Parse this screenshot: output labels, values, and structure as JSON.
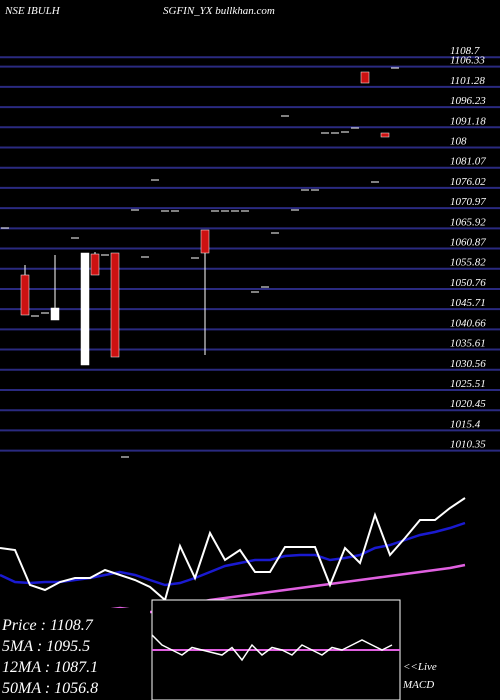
{
  "chart_data": {
    "type": "candlestick",
    "title_left": "NSE IBULH",
    "title_right": "SGFIN_YX bullkhan.com",
    "ylim": [
      1008.5,
      1113
    ],
    "yticks": [
      1108.7,
      1106.33,
      1101.28,
      1096.23,
      1091.18,
      {
        "value": 1086.12,
        "label": "108"
      },
      1081.07,
      1076.02,
      1070.97,
      1065.92,
      1060.87,
      1055.82,
      1050.76,
      1045.71,
      1040.66,
      1035.61,
      1030.56,
      1025.51,
      1020.45,
      1015.4,
      1010.35
    ],
    "grid": true,
    "grid_color": "#2a2a80",
    "up_color": "#ffffff",
    "down_color": "#cc1111",
    "candles": [
      {
        "o": 1066,
        "h": 1066,
        "l": 1066,
        "c": 1066
      },
      null,
      {
        "o": 1054.25,
        "h": 1056.75,
        "l": 1044.25,
        "c": 1044.25
      },
      {
        "o": 1044,
        "h": 1044,
        "l": 1044,
        "c": 1044
      },
      {
        "o": 1044.75,
        "h": 1044.75,
        "l": 1044.75,
        "c": 1044.75
      },
      {
        "o": 1043,
        "h": 1059.25,
        "l": 1043.5,
        "c": 1046
      },
      null,
      {
        "o": 1063.5,
        "h": 1063.5,
        "l": 1063.5,
        "c": 1063.5
      },
      {
        "o": 1031.75,
        "h": 1059.75,
        "l": 1031.75,
        "c": 1059.75
      },
      {
        "o": 1059.5,
        "h": 1060,
        "l": 1054.25,
        "c": 1054.25
      },
      {
        "o": 1059.25,
        "h": 1059.25,
        "l": 1059.25,
        "c": 1059.25
      },
      {
        "o": 1059.75,
        "h": 1059.75,
        "l": 1033.75,
        "c": 1033.75
      },
      {
        "o": 1008.75,
        "h": 1008.75,
        "l": 1008.75,
        "c": 1008.75
      },
      {
        "o": 1070.5,
        "h": 1070.5,
        "l": 1070.5,
        "c": 1070.5
      },
      {
        "o": 1058.75,
        "h": 1058.75,
        "l": 1058.75,
        "c": 1058.75
      },
      {
        "o": 1078,
        "h": 1078,
        "l": 1078,
        "c": 1078
      },
      {
        "o": 1070.25,
        "h": 1070.25,
        "l": 1070.25,
        "c": 1070.25
      },
      {
        "o": 1070.25,
        "h": 1070.25,
        "l": 1070.25,
        "c": 1070.25
      },
      null,
      {
        "o": 1058.5,
        "h": 1058.5,
        "l": 1058.5,
        "c": 1058.5
      },
      {
        "o": 1065.5,
        "h": 1065.5,
        "l": 1034.25,
        "c": 1059.75
      },
      {
        "o": 1070.25,
        "h": 1070.25,
        "l": 1070.25,
        "c": 1070.25
      },
      {
        "o": 1070.25,
        "h": 1070.25,
        "l": 1070.25,
        "c": 1070.25
      },
      {
        "o": 1070.25,
        "h": 1070.25,
        "l": 1070.25,
        "c": 1070.25
      },
      {
        "o": 1070.25,
        "h": 1070.25,
        "l": 1070.25,
        "c": 1070.25
      },
      {
        "o": 1050,
        "h": 1050,
        "l": 1050,
        "c": 1050
      },
      {
        "o": 1051.25,
        "h": 1051.25,
        "l": 1051.25,
        "c": 1051.25
      },
      {
        "o": 1064.75,
        "h": 1064.75,
        "l": 1064.75,
        "c": 1064.75
      },
      {
        "o": 1094,
        "h": 1094,
        "l": 1094,
        "c": 1094
      },
      {
        "o": 1070.5,
        "h": 1070.5,
        "l": 1070.5,
        "c": 1070.5
      },
      {
        "o": 1075.5,
        "h": 1075.5,
        "l": 1075.5,
        "c": 1075.5
      },
      {
        "o": 1075.5,
        "h": 1075.5,
        "l": 1075.5,
        "c": 1075.5
      },
      {
        "o": 1089.75,
        "h": 1089.75,
        "l": 1089.75,
        "c": 1089.75
      },
      {
        "o": 1089.75,
        "h": 1089.75,
        "l": 1089.75,
        "c": 1089.75
      },
      {
        "o": 1090,
        "h": 1090,
        "l": 1090,
        "c": 1090
      },
      {
        "o": 1091,
        "h": 1091,
        "l": 1091,
        "c": 1091
      },
      {
        "o": 1105,
        "h": 1105,
        "l": 1102.25,
        "c": 1102.25
      },
      {
        "o": 1077.5,
        "h": 1077.5,
        "l": 1077.5,
        "c": 1077.5
      },
      {
        "o": 1089.75,
        "h": 1089.75,
        "l": 1088.75,
        "c": 1088.75
      },
      {
        "o": 1106,
        "h": 1106,
        "l": 1106,
        "c": 1106
      }
    ],
    "lower": {
      "ylim": [
        0,
        230
      ],
      "series": [
        {
          "color": "#e060e0",
          "values": [
            80,
            82,
            83,
            84,
            85,
            86,
            88,
            90,
            92,
            90,
            88,
            88,
            95,
            97,
            100,
            102,
            104,
            106,
            108,
            110,
            112,
            114,
            116,
            118,
            120,
            122,
            124,
            126,
            128,
            130,
            132,
            135
          ]
        },
        {
          "color": "#1a1ad0",
          "values": [
            125,
            118,
            117,
            118,
            118,
            120,
            122,
            125,
            128,
            125,
            120,
            115,
            117,
            122,
            128,
            134,
            137,
            140,
            140,
            144,
            145,
            145,
            140,
            142,
            145,
            152,
            155,
            160,
            165,
            168,
            172,
            177
          ]
        },
        {
          "color": "#ffffff",
          "values": [
            152,
            150,
            115,
            110,
            118,
            122,
            122,
            130,
            125,
            120,
            113,
            100,
            154,
            122,
            167,
            140,
            150,
            128,
            128,
            153,
            153,
            153,
            115,
            152,
            137,
            185,
            145,
            162,
            180,
            180,
            192,
            202
          ]
        }
      ]
    },
    "legend": [
      "Price : 1108.7",
      "5MA : 1095.5",
      "12MA : 1087.1",
      "50MA : 1056.8"
    ],
    "macd": {
      "label_live": "<<Live",
      "label": "MACD",
      "ylim": [
        -1,
        1
      ],
      "signal": 0,
      "signal_color": "#e060e0",
      "values": [
        0.3,
        0.1,
        0,
        -0.1,
        0.05,
        0,
        -0.05,
        -0.1,
        0.05,
        -0.2,
        0.1,
        -0.1,
        0.05,
        0,
        -0.1,
        0.1,
        0,
        -0.1,
        0.05,
        0,
        0.1,
        0.2,
        0.1,
        0,
        0.1
      ]
    }
  }
}
